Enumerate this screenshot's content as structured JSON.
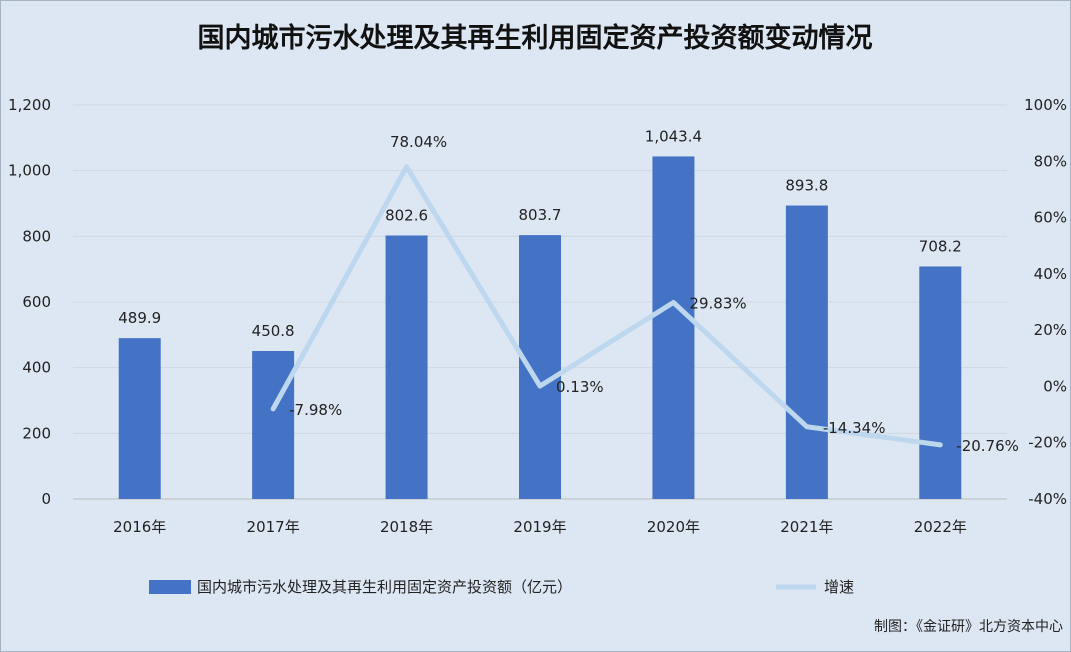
{
  "chart_data": {
    "type": "bar",
    "title": "国内城市污水处理及其再生利用固定资产投资额变动情况",
    "categories": [
      "2016年",
      "2017年",
      "2018年",
      "2019年",
      "2020年",
      "2021年",
      "2022年"
    ],
    "series": [
      {
        "name": "国内城市污水处理及其再生利用固定资产投资额（亿元）",
        "type": "bar",
        "axis": "left",
        "color": "#4472c4",
        "values": [
          489.9,
          450.8,
          802.6,
          803.7,
          1043.4,
          893.8,
          708.2
        ],
        "labels": [
          "489.9",
          "450.8",
          "802.6",
          "803.7",
          "1,043.4",
          "893.8",
          "708.2"
        ]
      },
      {
        "name": "增速",
        "type": "line",
        "axis": "right",
        "color": "#bdd7ee",
        "values": [
          null,
          -7.98,
          78.04,
          0.13,
          29.83,
          -14.34,
          -20.76
        ],
        "labels": [
          "",
          "-7.98%",
          "78.04%",
          "0.13%",
          "29.83%",
          "-14.34%",
          "-20.76%"
        ]
      }
    ],
    "y_left": {
      "ylim": [
        0,
        1200
      ],
      "ticks": [
        0,
        200,
        400,
        600,
        800,
        1000,
        1200
      ],
      "tick_labels": [
        "0",
        "200",
        "400",
        "600",
        "800",
        "1,000",
        "1,200"
      ]
    },
    "y_right": {
      "ylim": [
        -40,
        100
      ],
      "ticks": [
        -40,
        -20,
        0,
        20,
        40,
        60,
        80,
        100
      ],
      "tick_labels": [
        "-40%",
        "-20%",
        "0%",
        "20%",
        "40%",
        "60%",
        "80%",
        "100%"
      ]
    },
    "grid": true,
    "legend_position": "bottom",
    "source": "制图：《金证研》北方资本中心"
  }
}
